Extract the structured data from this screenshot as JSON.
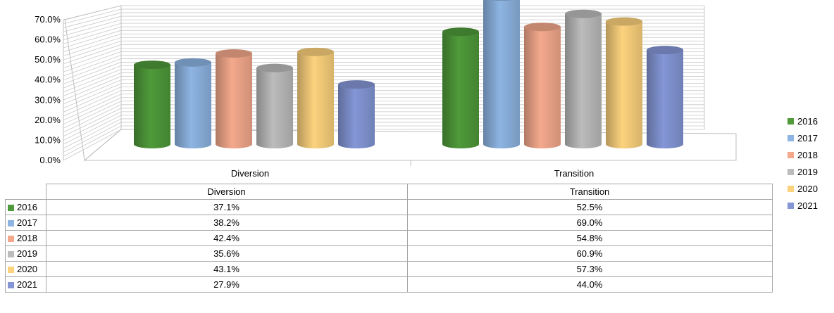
{
  "chart_data": {
    "type": "bar",
    "categories": [
      "Diversion",
      "Transition"
    ],
    "series": [
      {
        "name": "2016",
        "color": "#4f9a3a",
        "values": [
          37.1,
          52.5
        ],
        "labels": [
          "37.1%",
          "52.5%"
        ]
      },
      {
        "name": "2017",
        "color": "#8db4e2",
        "values": [
          38.2,
          69.0
        ],
        "labels": [
          "38.2%",
          "69.0%"
        ]
      },
      {
        "name": "2018",
        "color": "#f4a98c",
        "values": [
          42.4,
          54.8
        ],
        "labels": [
          "42.4%",
          "54.8%"
        ]
      },
      {
        "name": "2019",
        "color": "#bcbcbc",
        "values": [
          35.6,
          60.9
        ],
        "labels": [
          "35.6%",
          "60.9%"
        ]
      },
      {
        "name": "2020",
        "color": "#fcd27d",
        "values": [
          43.1,
          57.3
        ],
        "labels": [
          "43.1%",
          "57.3%"
        ]
      },
      {
        "name": "2021",
        "color": "#8496d6",
        "values": [
          27.9,
          44.0
        ],
        "labels": [
          "27.9%",
          "44.0%"
        ]
      }
    ],
    "y_ticks": [
      "0.0%",
      "10.0%",
      "20.0%",
      "30.0%",
      "40.0%",
      "50.0%",
      "60.0%",
      "70.0%"
    ],
    "ylim": [
      0,
      70
    ],
    "title": "",
    "xlabel": "",
    "ylabel": "",
    "grid": true,
    "legend": "right",
    "data_table": true,
    "style": "3d-cylinder"
  }
}
